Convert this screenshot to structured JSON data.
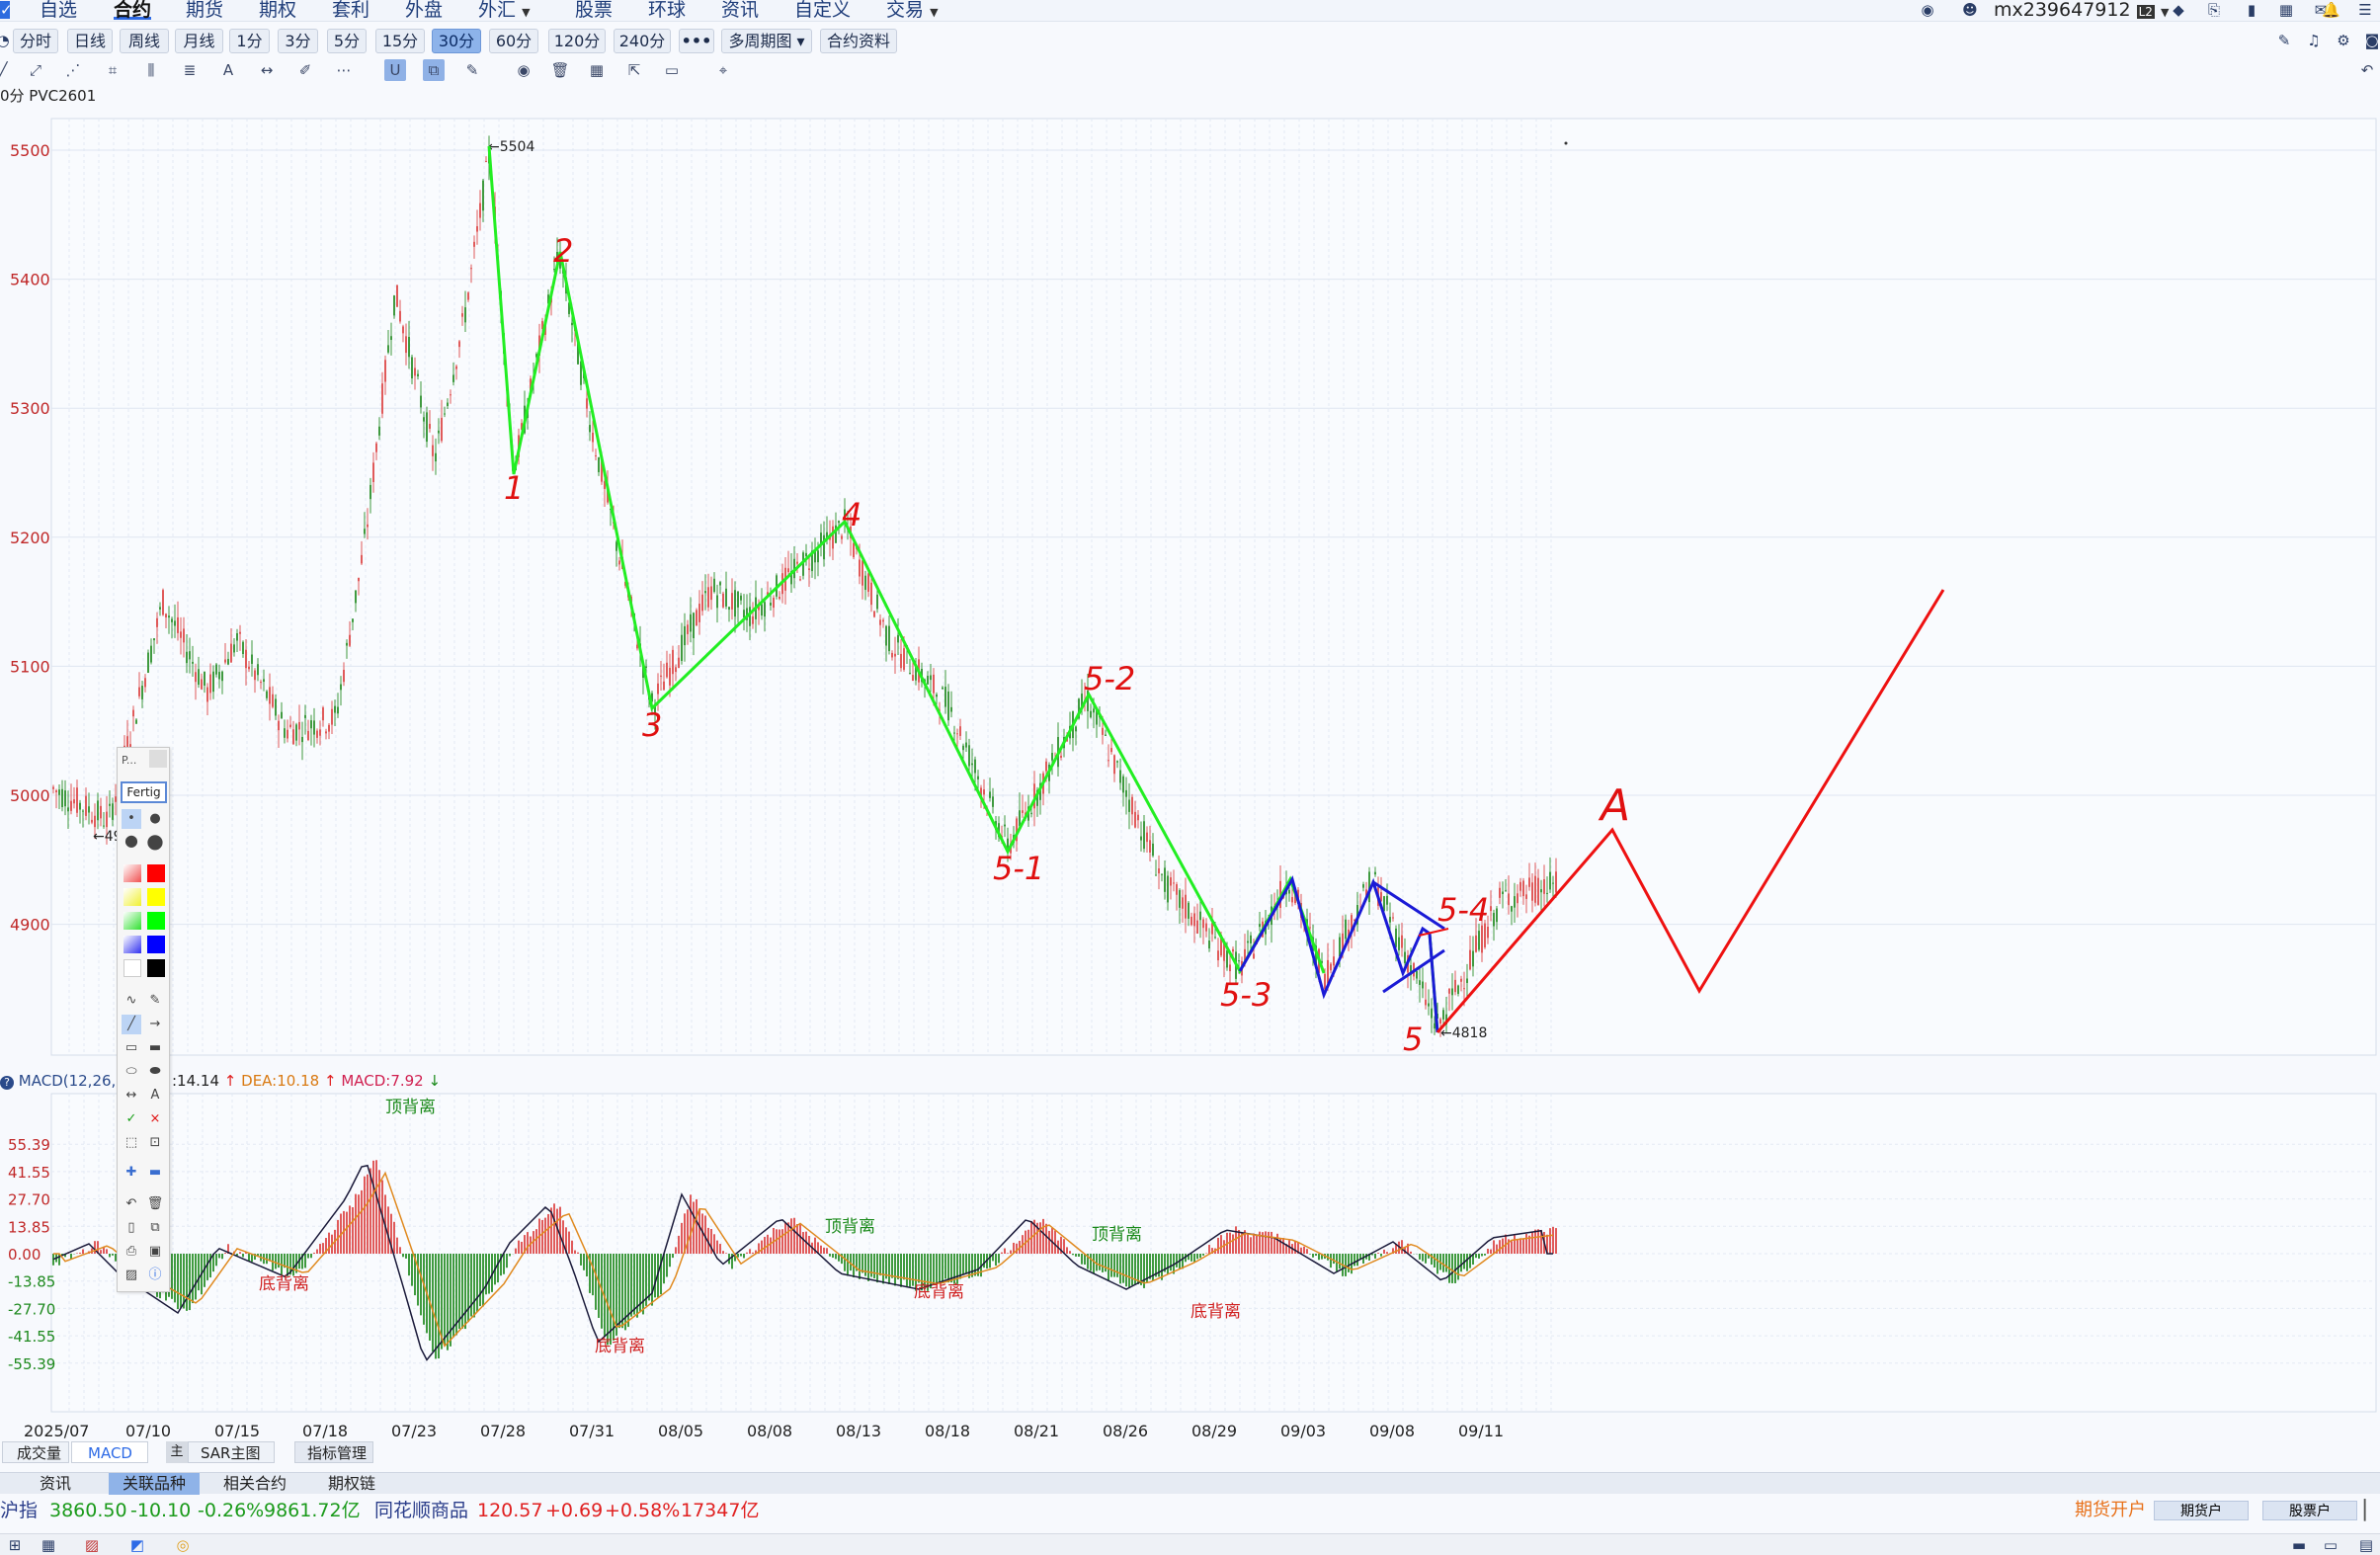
{
  "menu": {
    "items": [
      {
        "label": "自选",
        "active": false
      },
      {
        "label": "合约",
        "active": true
      },
      {
        "label": "期货",
        "active": false
      },
      {
        "label": "期权",
        "active": false
      },
      {
        "label": "套利",
        "active": false
      },
      {
        "label": "外盘",
        "active": false
      },
      {
        "label": "外汇",
        "active": false
      },
      {
        "label": "股票",
        "active": false
      },
      {
        "label": "环球",
        "active": false
      },
      {
        "label": "资讯",
        "active": false
      },
      {
        "label": "自定义",
        "active": false
      },
      {
        "label": "交易",
        "active": false
      }
    ],
    "user": "mx239647912"
  },
  "periods": [
    {
      "label": "分时",
      "active": false
    },
    {
      "label": "日线",
      "active": false
    },
    {
      "label": "周线",
      "active": false
    },
    {
      "label": "月线",
      "active": false
    },
    {
      "label": "1分",
      "active": false
    },
    {
      "label": "3分",
      "active": false
    },
    {
      "label": "5分",
      "active": false
    },
    {
      "label": "15分",
      "active": false
    },
    {
      "label": "30分",
      "active": true
    },
    {
      "label": "60分",
      "active": false
    },
    {
      "label": "120分",
      "active": false
    },
    {
      "label": "240分",
      "active": false
    },
    {
      "label": "•••",
      "active": false
    },
    {
      "label": "多周期图 ▾",
      "active": false
    },
    {
      "label": "合约资料",
      "active": false
    }
  ],
  "symbol": "0分 PVC2601",
  "price_axis": [
    "5500",
    "5400",
    "5300",
    "5200",
    "5100",
    "5000",
    "4900"
  ],
  "macd_axis": [
    "55.39",
    "41.55",
    "27.70",
    "13.85",
    "0.00",
    "-13.85",
    "-27.70",
    "-41.55",
    "-55.39"
  ],
  "date_axis": [
    "2025/07",
    "07/10",
    "07/15",
    "07/18",
    "07/23",
    "07/28",
    "07/31",
    "08/05",
    "08/08",
    "08/13",
    "08/18",
    "08/21",
    "08/26",
    "08/29",
    "09/03",
    "09/08",
    "09/11"
  ],
  "markers": {
    "high": "5504",
    "low": "4818",
    "left_partial": "←49"
  },
  "macd_header": {
    "name": "MACD(12,26,9",
    "diff": ":14.14",
    "dea": "DEA:10.18",
    "macd": "MACD:7.92"
  },
  "macd_notes": {
    "top1": "顶背离",
    "bottom1": "底背离",
    "bottom2": "底背离",
    "top2": "顶背离",
    "bottom3": "底背离",
    "top3": "顶背离",
    "bottom4": "底背离"
  },
  "annotations": [
    "1",
    "2",
    "3",
    "4",
    "5-1",
    "5-2",
    "5-3",
    "5-4",
    "5",
    "A"
  ],
  "palette": {
    "title": "P...",
    "done": "Fertig"
  },
  "indicator_tabs": [
    "成交量",
    "MACD",
    "主",
    "SAR主图",
    "指标管理"
  ],
  "bottom_tabs": [
    {
      "label": "资讯",
      "active": false
    },
    {
      "label": "关联品种",
      "active": true
    },
    {
      "label": "相关合约",
      "active": false
    },
    {
      "label": "期权链",
      "active": false
    }
  ],
  "ticker": {
    "i1_name": "沪指",
    "i1_price": "3860.50",
    "i1_chg": "-10.10",
    "i1_pct": "-0.26%",
    "i1_amt": "9861.72亿",
    "i2_name": "同花顺商品",
    "i2_price": "120.57",
    "i2_chg": "+0.69",
    "i2_pct": "+0.58%",
    "i2_amt": "17347亿"
  },
  "account_links": {
    "open": "期货开户",
    "fut": "期货户",
    "stock": "股票户"
  },
  "colors": {
    "up": "#e05a5a",
    "down": "#3f9a3f",
    "wave": "#22ee22",
    "triangle": "#1a1ad6",
    "forecast": "#ee1111",
    "grid": "#dde6f3",
    "accent": "#2e6be6"
  }
}
